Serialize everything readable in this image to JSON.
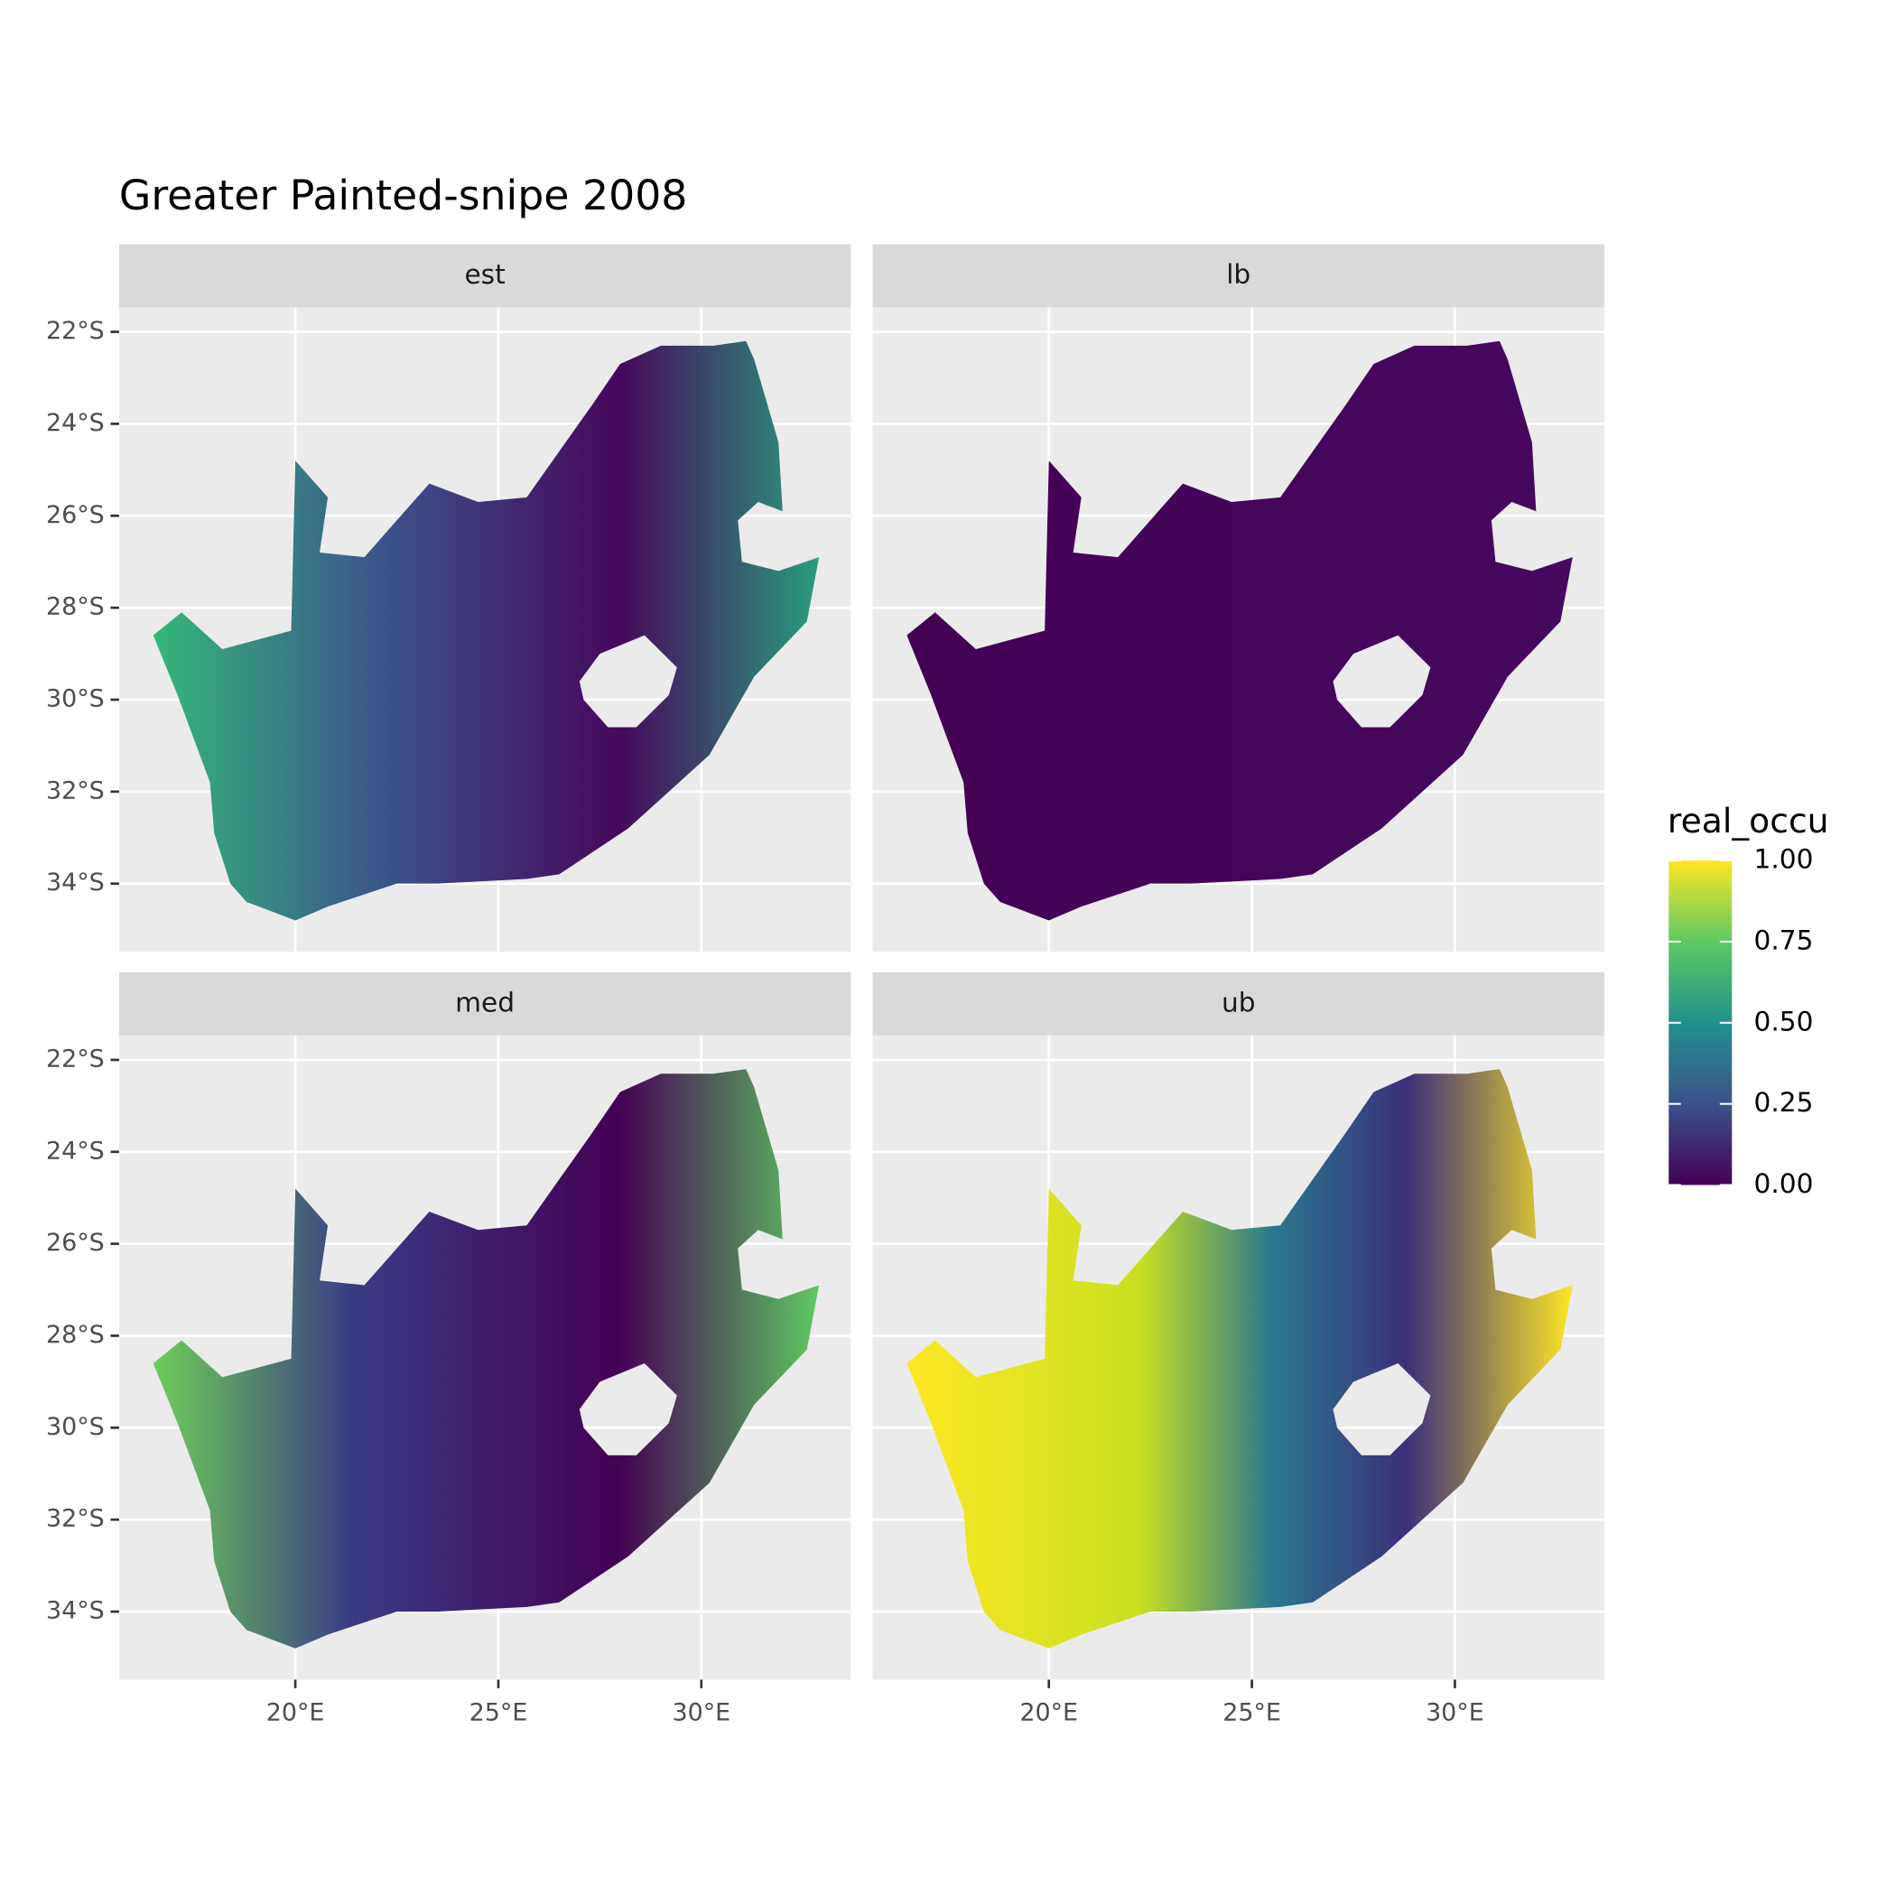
{
  "title": "Greater Painted-snipe 2008",
  "panels": [
    {
      "label": "est"
    },
    {
      "label": "lb"
    },
    {
      "label": "med"
    },
    {
      "label": "ub"
    }
  ],
  "x_axis": {
    "lim": [
      15.66,
      33.68
    ],
    "ticks": [
      {
        "value": 20,
        "label": "20°E"
      },
      {
        "value": 25,
        "label": "25°E"
      },
      {
        "value": 30,
        "label": "30°E"
      }
    ]
  },
  "y_axis": {
    "lim": [
      -35.48,
      -21.47
    ],
    "ticks": [
      {
        "value": -22,
        "label": "22°S"
      },
      {
        "value": -24,
        "label": "24°S"
      },
      {
        "value": -26,
        "label": "26°S"
      },
      {
        "value": -28,
        "label": "28°S"
      },
      {
        "value": -30,
        "label": "30°S"
      },
      {
        "value": -32,
        "label": "32°S"
      },
      {
        "value": -34,
        "label": "34°S"
      }
    ]
  },
  "legend": {
    "title": "real_occu",
    "lim": [
      0,
      1
    ],
    "ticks": [
      {
        "value": 0,
        "label": "0.00"
      },
      {
        "value": 0.25,
        "label": "0.25"
      },
      {
        "value": 0.5,
        "label": "0.50"
      },
      {
        "value": 0.75,
        "label": "0.75"
      },
      {
        "value": 1,
        "label": "1.00"
      }
    ]
  }
}
